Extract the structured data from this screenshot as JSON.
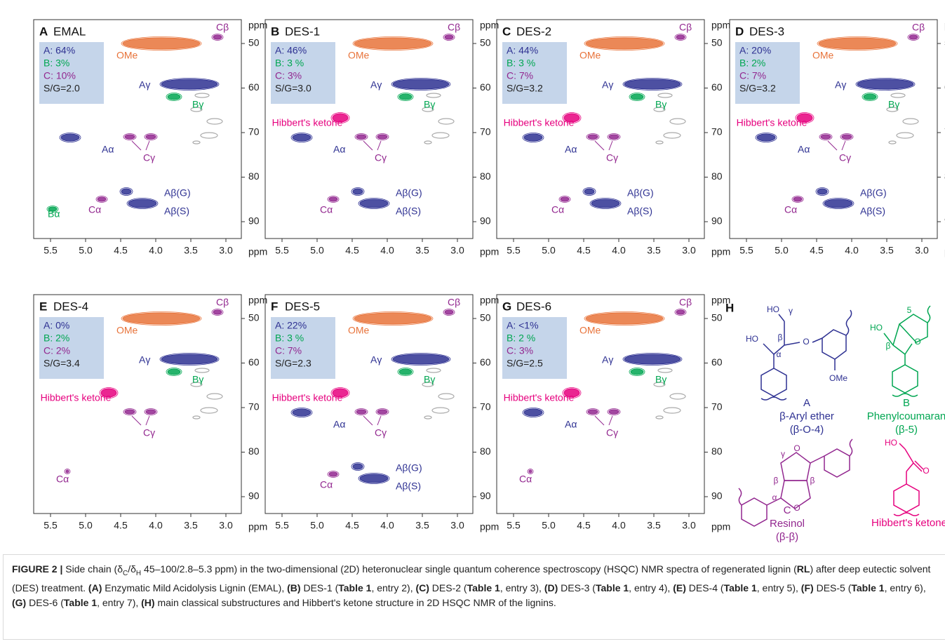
{
  "figure": {
    "x_ticks": [
      "5.5",
      "5.0",
      "4.5",
      "4.0",
      "3.5",
      "3.0"
    ],
    "y_ticks": [
      "50",
      "60",
      "70",
      "80",
      "90"
    ],
    "unit": "ppm",
    "panels": [
      {
        "letter": "A",
        "title": "EMAL",
        "stats": [
          "A: 64%",
          "B: 3%",
          "C: 10%",
          "S/G=2.0"
        ],
        "peaks": [
          "Cβ",
          "OMe",
          "Aγ",
          "Bγ",
          "Aα",
          "Cγ",
          "Aβ(G)",
          "Aβ(S)",
          "Cα",
          "Bα"
        ]
      },
      {
        "letter": "B",
        "title": "DES-1",
        "stats": [
          "A: 46%",
          "B: 3 %",
          "C: 3%",
          "S/G=3.0"
        ],
        "peaks": [
          "Cβ",
          "OMe",
          "Aγ",
          "Bγ",
          "Hibbert's ketone",
          "Aα",
          "Cγ",
          "Aβ(G)",
          "Aβ(S)",
          "Cα"
        ]
      },
      {
        "letter": "C",
        "title": "DES-2",
        "stats": [
          "A: 44%",
          "B: 3 %",
          "C: 7%",
          "S/G=3.2"
        ],
        "peaks": [
          "Cβ",
          "OMe",
          "Aγ",
          "Bγ",
          "Hibbert's ketone",
          "Aα",
          "Cγ",
          "Aβ(G)",
          "Aβ(S)",
          "Cα"
        ]
      },
      {
        "letter": "D",
        "title": "DES-3",
        "stats": [
          "A: 20%",
          "B: 2%",
          "C: 7%",
          "S/G=3.2"
        ],
        "peaks": [
          "Cβ",
          "OMe",
          "Aγ",
          "Bγ",
          "Hibbert's ketone",
          "Aα",
          "Cγ",
          "Aβ(G)",
          "Aβ(S)",
          "Cα"
        ]
      },
      {
        "letter": "E",
        "title": "DES-4",
        "stats": [
          "A: 0%",
          "B: 2%",
          "C: 2%",
          "S/G=3.4"
        ],
        "peaks": [
          "Cβ",
          "OMe",
          "Aγ",
          "Bγ",
          "Hibbert's ketone",
          "Cγ",
          "Cα"
        ]
      },
      {
        "letter": "F",
        "title": "DES-5",
        "stats": [
          "A: 22%",
          "B: 3 %",
          "C: 7%",
          "S/G=2.3"
        ],
        "peaks": [
          "Cβ",
          "OMe",
          "Aγ",
          "Bγ",
          "Hibbert's ketone",
          "Aα",
          "Cγ",
          "Aβ(G)",
          "Aβ(S)",
          "Cα"
        ]
      },
      {
        "letter": "G",
        "title": "DES-6",
        "stats": [
          "A: <1%",
          "B: 2 %",
          "C: 3%",
          "S/G=2.5"
        ],
        "peaks": [
          "Cβ",
          "OMe",
          "Aγ",
          "Bγ",
          "Hibbert's ketone",
          "Aα",
          "Cγ",
          "Cα"
        ]
      }
    ],
    "structures": {
      "letter": "H",
      "items": [
        {
          "name": [
            "A",
            "β-Aryl ether",
            "(β-O-4)"
          ],
          "atoms": [
            "HO",
            "γ",
            "HO",
            "β",
            "α",
            "O",
            "OMe"
          ]
        },
        {
          "name": [
            "B",
            "Phenylcoumaran",
            "(β-5)"
          ],
          "atoms": [
            "HO",
            "5",
            "β",
            "O"
          ]
        },
        {
          "name": [
            "C",
            "Resinol",
            "(β-β)"
          ],
          "atoms": [
            "γ",
            "O",
            "β",
            "β",
            "α",
            "O"
          ]
        },
        {
          "name": [
            "Hibbert's ketone"
          ],
          "atoms": [
            "HO",
            "O"
          ]
        }
      ]
    }
  },
  "caption": [
    {
      "text": "FIGURE 2 |",
      "bold": true
    },
    {
      "text": " Side chain (δ"
    },
    {
      "text": "C",
      "sub": true
    },
    {
      "text": "/δ"
    },
    {
      "text": "H",
      "sub": true
    },
    {
      "text": " 45–100/2.8–5.3 ppm) in the two-dimensional (2D) heteronuclear single quantum coherence spectroscopy (HSQC) NMR spectra of regenerated lignin ("
    },
    {
      "text": "RL",
      "bold": true
    },
    {
      "text": ") after deep eutectic solvent (DES) treatment. "
    },
    {
      "text": "(A)",
      "bold": true
    },
    {
      "text": " Enzymatic Mild Acidolysis Lignin (EMAL), "
    },
    {
      "text": "(B)",
      "bold": true
    },
    {
      "text": " DES-1 ("
    },
    {
      "text": "Table 1",
      "bold": true
    },
    {
      "text": ", entry 2), "
    },
    {
      "text": "(C)",
      "bold": true
    },
    {
      "text": " DES-2 ("
    },
    {
      "text": "Table 1",
      "bold": true
    },
    {
      "text": ", entry 3), "
    },
    {
      "text": "(D)",
      "bold": true
    },
    {
      "text": " DES-3 ("
    },
    {
      "text": "Table 1",
      "bold": true
    },
    {
      "text": ", entry 4), "
    },
    {
      "text": "(E)",
      "bold": true
    },
    {
      "text": " DES-4 ("
    },
    {
      "text": "Table 1",
      "bold": true
    },
    {
      "text": ", entry 5), "
    },
    {
      "text": "(F)",
      "bold": true
    },
    {
      "text": " DES-5 ("
    },
    {
      "text": "Table 1",
      "bold": true
    },
    {
      "text": ", entry 6), "
    },
    {
      "text": "(G)",
      "bold": true
    },
    {
      "text": " DES-6 ("
    },
    {
      "text": "Table 1",
      "bold": true
    },
    {
      "text": ", entry 7), "
    },
    {
      "text": "(H)",
      "bold": true
    },
    {
      "text": " main classical substructures and Hibbert's ketone structure in 2D HSQC NMR of the lignins."
    }
  ]
}
